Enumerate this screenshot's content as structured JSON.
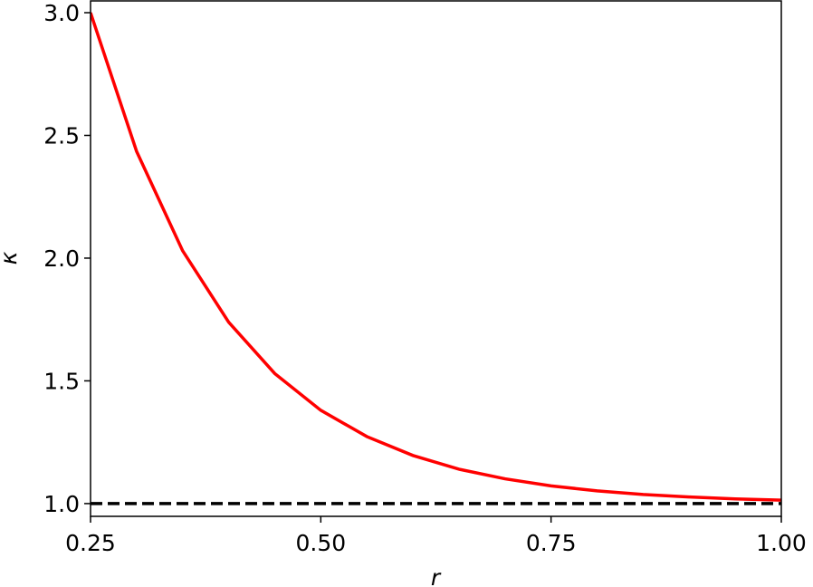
{
  "chart_data": {
    "type": "line",
    "xlabel": "r",
    "ylabel": "κ",
    "x": [
      0.25,
      0.3,
      0.35,
      0.4,
      0.45,
      0.5,
      0.55,
      0.6,
      0.65,
      0.7,
      0.75,
      0.8,
      0.85,
      0.9,
      0.95,
      1.0
    ],
    "series": [
      {
        "color": "#ff0000",
        "linestyle": "solid",
        "values": [
          3.0,
          2.435,
          2.03,
          1.739,
          1.53,
          1.38,
          1.273,
          1.196,
          1.14,
          1.101,
          1.072,
          1.052,
          1.037,
          1.027,
          1.019,
          1.014
        ]
      },
      {
        "color": "#000000",
        "linestyle": "dashed",
        "values": [
          1.0,
          1.0,
          1.0,
          1.0,
          1.0,
          1.0,
          1.0,
          1.0,
          1.0,
          1.0,
          1.0,
          1.0,
          1.0,
          1.0,
          1.0,
          1.0
        ]
      }
    ],
    "xlim": [
      0.25,
      1.0
    ],
    "xticks": [
      {
        "value": 0.25,
        "label": "0.25"
      },
      {
        "value": 0.5,
        "label": "0.50"
      },
      {
        "value": 0.75,
        "label": "0.75"
      },
      {
        "value": 1.0,
        "label": "1.00"
      }
    ],
    "ylim": [
      0.948,
      3.048
    ],
    "yticks": [
      {
        "value": 1.0,
        "label": "1.0"
      },
      {
        "value": 1.5,
        "label": "1.5"
      },
      {
        "value": 2.0,
        "label": "2.0"
      },
      {
        "value": 2.5,
        "label": "2.5"
      },
      {
        "value": 3.0,
        "label": "3.0"
      }
    ],
    "grid": false
  }
}
